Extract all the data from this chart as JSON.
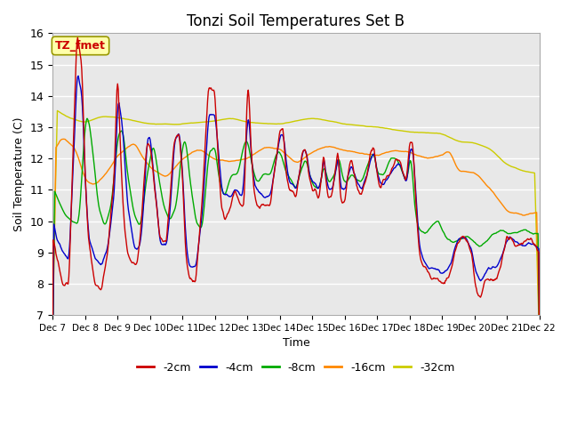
{
  "title": "Tonzi Soil Temperatures Set B",
  "xlabel": "Time",
  "ylabel": "Soil Temperature (C)",
  "ylim": [
    7.0,
    16.0
  ],
  "yticks": [
    7.0,
    8.0,
    9.0,
    10.0,
    11.0,
    12.0,
    13.0,
    14.0,
    15.0,
    16.0
  ],
  "xtick_labels": [
    "Dec 7",
    "Dec 8",
    "Dec 9",
    "Dec 10",
    "Dec 11",
    "Dec 12",
    "Dec 13",
    "Dec 14",
    "Dec 15",
    "Dec 16",
    "Dec 17",
    "Dec 18",
    "Dec 19",
    "Dec 20",
    "Dec 21",
    "Dec 22"
  ],
  "colors": {
    "-2cm": "#cc0000",
    "-4cm": "#0000cc",
    "-8cm": "#00aa00",
    "-16cm": "#ff8800",
    "-32cm": "#cccc00"
  },
  "annotation_text": "TZ_fmet",
  "annotation_box_color": "#ffffaa",
  "annotation_box_edge": "#999900",
  "annotation_text_color": "#cc0000",
  "plot_bg_color": "#e8e8e8",
  "grid_color": "#ffffff",
  "n_points": 720
}
